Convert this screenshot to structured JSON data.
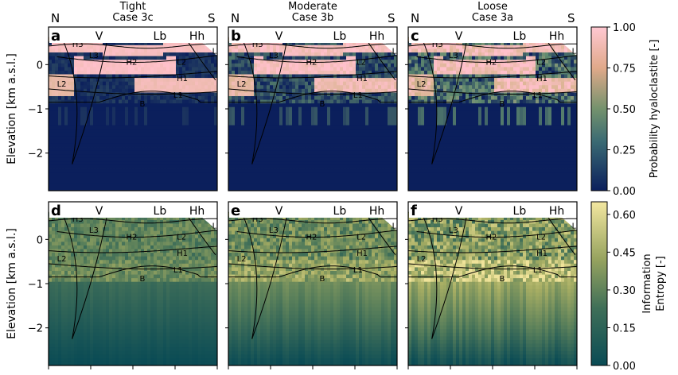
{
  "chart_data": {
    "type": "heatmap",
    "layout": "2x3 grid of cross-section panels with two colorbars",
    "shared_ylabel": "Elevation [km a.s.l.]",
    "y_ticks": [
      "0",
      "−1",
      "−2"
    ],
    "ylim": [
      -2.85,
      0.85
    ],
    "columns": [
      {
        "header": [
          "Tight",
          "Case 3c"
        ],
        "top_letters": [
          "N",
          "S"
        ]
      },
      {
        "header": [
          "Moderate",
          "Case 3b"
        ],
        "top_letters": [
          "N",
          "S"
        ]
      },
      {
        "header": [
          "Loose",
          "Case 3a"
        ],
        "top_letters": [
          "N",
          "S"
        ]
      }
    ],
    "panel_labels": [
      "a",
      "b",
      "c",
      "d",
      "e",
      "f"
    ],
    "marker_labels": [
      "V",
      "Lb",
      "Hh"
    ],
    "unit_labels": [
      "H3",
      "L3",
      "H2",
      "L2",
      "H1",
      "L1",
      "B",
      "L4"
    ],
    "rows": [
      {
        "quantity": "probability",
        "colorbar": {
          "label": "Probability hyaloclastite  [-]",
          "ticks": [
            "1.00",
            "0.75",
            "0.50",
            "0.25",
            "0.00"
          ],
          "range": [
            0,
            1
          ],
          "colors": [
            "#0b1f5c",
            "#5f8a6e",
            "#d9b48f",
            "#ffc0cb"
          ]
        }
      },
      {
        "quantity": "entropy",
        "colorbar": {
          "label": [
            "Information",
            "Entropy [-]"
          ],
          "ticks": [
            "0.60",
            "0.45",
            "0.30",
            "0.15",
            "0.00"
          ],
          "range": [
            0,
            0.65
          ],
          "colors": [
            "#0a4b55",
            "#597f5a",
            "#a6ad63",
            "#efe39a"
          ]
        }
      }
    ]
  }
}
